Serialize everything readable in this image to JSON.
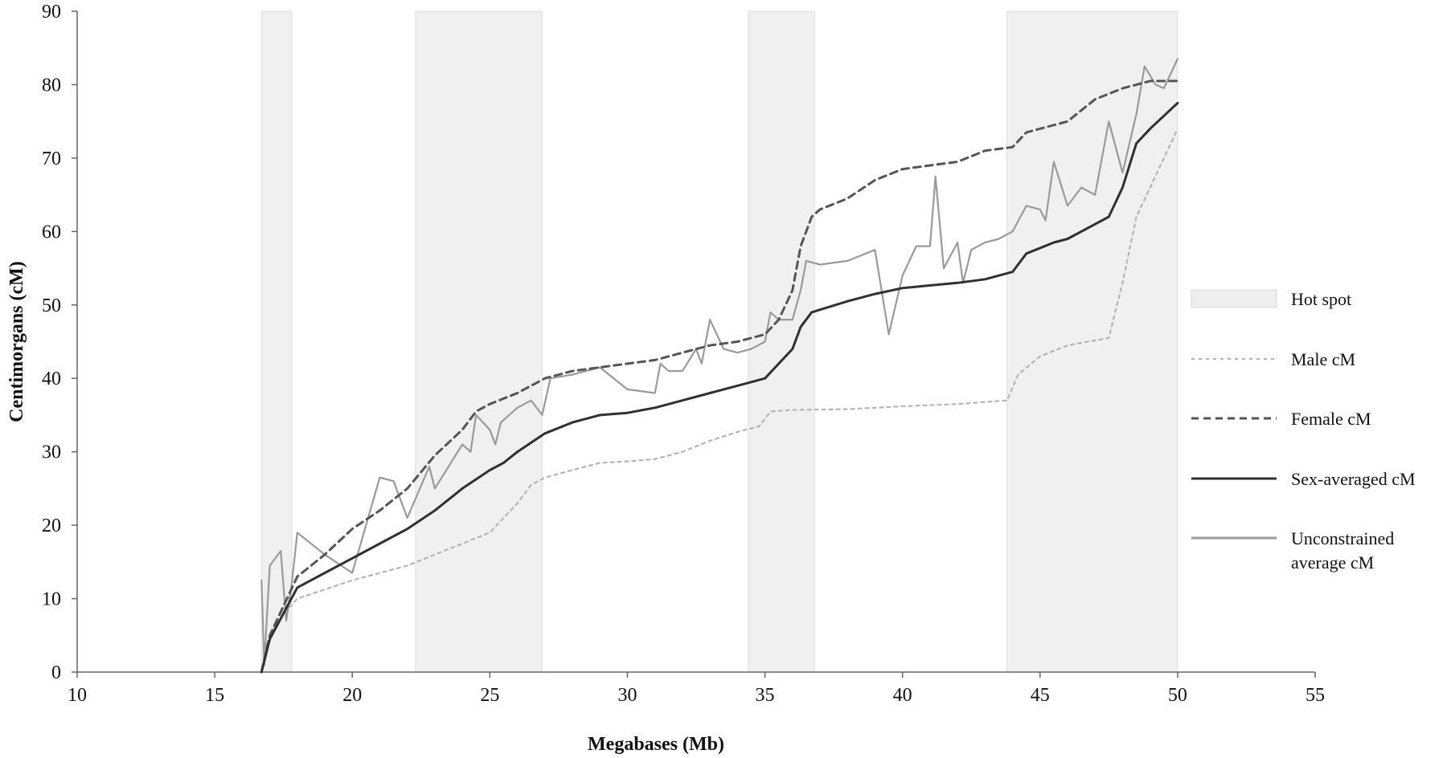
{
  "chart_data": {
    "type": "line",
    "title": "",
    "xlabel": "Megabases (Mb)",
    "ylabel": "Centimorgans (cM)",
    "xlim": [
      10,
      55
    ],
    "ylim": [
      0,
      90
    ],
    "x_ticks": [
      "10",
      "15",
      "20",
      "25",
      "30",
      "35",
      "40",
      "45",
      "50",
      "55"
    ],
    "y_ticks": [
      "0",
      "10",
      "20",
      "30",
      "40",
      "50",
      "60",
      "70",
      "80",
      "90"
    ],
    "grid": false,
    "legend_position": "right",
    "hot_spots": [
      [
        16.7,
        17.8
      ],
      [
        22.3,
        26.9
      ],
      [
        34.4,
        36.8
      ],
      [
        43.8,
        50.0
      ]
    ],
    "series": [
      {
        "name": "Male cM",
        "style": "dotted",
        "color": "#b4b4b4",
        "points": [
          [
            16.7,
            0
          ],
          [
            17.0,
            5
          ],
          [
            17.5,
            8
          ],
          [
            18.0,
            10
          ],
          [
            20.0,
            12.5
          ],
          [
            22.0,
            14.5
          ],
          [
            24.0,
            17.5
          ],
          [
            25.0,
            19
          ],
          [
            25.5,
            21
          ],
          [
            26.0,
            23
          ],
          [
            26.5,
            25.5
          ],
          [
            27.0,
            26.5
          ],
          [
            28.0,
            27.5
          ],
          [
            29.0,
            28.5
          ],
          [
            30.0,
            28.7
          ],
          [
            31.0,
            29
          ],
          [
            32.0,
            30
          ],
          [
            33.0,
            31.5
          ],
          [
            34.0,
            32.7
          ],
          [
            34.8,
            33.5
          ],
          [
            35.2,
            35.5
          ],
          [
            36.0,
            35.7
          ],
          [
            38.0,
            35.8
          ],
          [
            40.0,
            36.2
          ],
          [
            42.0,
            36.5
          ],
          [
            43.8,
            37
          ],
          [
            44.2,
            40.5
          ],
          [
            45.0,
            43
          ],
          [
            46.0,
            44.5
          ],
          [
            47.5,
            45.5
          ],
          [
            48.0,
            53
          ],
          [
            48.5,
            62
          ],
          [
            49.0,
            66
          ],
          [
            49.5,
            70
          ],
          [
            50.0,
            74
          ]
        ]
      },
      {
        "name": "Female cM",
        "style": "dashed",
        "color": "#555555",
        "points": [
          [
            16.7,
            0
          ],
          [
            17.0,
            5
          ],
          [
            17.5,
            9
          ],
          [
            18.0,
            13
          ],
          [
            19.0,
            16
          ],
          [
            20.0,
            19.5
          ],
          [
            21.0,
            22
          ],
          [
            22.0,
            25
          ],
          [
            23.0,
            29.5
          ],
          [
            24.0,
            33
          ],
          [
            24.5,
            35.5
          ],
          [
            25.0,
            36.5
          ],
          [
            26.0,
            38
          ],
          [
            27.0,
            40
          ],
          [
            28.0,
            41
          ],
          [
            29.0,
            41.5
          ],
          [
            30.0,
            42
          ],
          [
            31.0,
            42.5
          ],
          [
            32.0,
            43.5
          ],
          [
            33.0,
            44.5
          ],
          [
            34.0,
            45
          ],
          [
            35.0,
            46
          ],
          [
            35.5,
            48
          ],
          [
            36.0,
            52
          ],
          [
            36.3,
            58
          ],
          [
            36.7,
            62
          ],
          [
            37.0,
            63
          ],
          [
            38.0,
            64.5
          ],
          [
            39.0,
            67
          ],
          [
            40.0,
            68.5
          ],
          [
            41.0,
            69
          ],
          [
            42.0,
            69.5
          ],
          [
            43.0,
            71
          ],
          [
            44.0,
            71.5
          ],
          [
            44.5,
            73.5
          ],
          [
            46.0,
            75
          ],
          [
            47.0,
            78
          ],
          [
            48.0,
            79.5
          ],
          [
            49.0,
            80.5
          ],
          [
            50.0,
            80.5
          ]
        ]
      },
      {
        "name": "Sex-averaged cM",
        "style": "solid",
        "color": "#303030",
        "points": [
          [
            16.7,
            0
          ],
          [
            17.0,
            4.5
          ],
          [
            17.5,
            8
          ],
          [
            18.0,
            11.5
          ],
          [
            19.0,
            13.5
          ],
          [
            20.0,
            15.5
          ],
          [
            21.0,
            17.5
          ],
          [
            22.0,
            19.5
          ],
          [
            23.0,
            22
          ],
          [
            24.0,
            25
          ],
          [
            25.0,
            27.5
          ],
          [
            25.5,
            28.5
          ],
          [
            26.0,
            30
          ],
          [
            27.0,
            32.5
          ],
          [
            28.0,
            34
          ],
          [
            29.0,
            35
          ],
          [
            30.0,
            35.3
          ],
          [
            31.0,
            36
          ],
          [
            32.0,
            37
          ],
          [
            33.0,
            38
          ],
          [
            34.0,
            39
          ],
          [
            35.0,
            40
          ],
          [
            35.5,
            42
          ],
          [
            36.0,
            44
          ],
          [
            36.3,
            47
          ],
          [
            36.7,
            49
          ],
          [
            38.0,
            50.5
          ],
          [
            39.0,
            51.5
          ],
          [
            40.0,
            52.3
          ],
          [
            42.0,
            53
          ],
          [
            43.0,
            53.5
          ],
          [
            44.0,
            54.5
          ],
          [
            44.5,
            57
          ],
          [
            45.5,
            58.5
          ],
          [
            46.0,
            59
          ],
          [
            47.0,
            61
          ],
          [
            47.5,
            62
          ],
          [
            48.0,
            66
          ],
          [
            48.5,
            72
          ],
          [
            49.0,
            74
          ],
          [
            50.0,
            77.5
          ]
        ]
      },
      {
        "name": "Unconstrained average cM",
        "style": "solid",
        "color": "#9a9a9a",
        "points": [
          [
            16.7,
            12.5
          ],
          [
            16.8,
            1
          ],
          [
            17.0,
            14.5
          ],
          [
            17.4,
            16.5
          ],
          [
            17.6,
            7
          ],
          [
            17.8,
            12
          ],
          [
            18.0,
            19
          ],
          [
            19.0,
            16
          ],
          [
            20.0,
            13.5
          ],
          [
            21.0,
            26.5
          ],
          [
            21.5,
            26
          ],
          [
            22.0,
            21
          ],
          [
            22.8,
            28
          ],
          [
            23.0,
            25
          ],
          [
            23.5,
            28
          ],
          [
            24.0,
            31
          ],
          [
            24.3,
            30
          ],
          [
            24.5,
            35
          ],
          [
            25.0,
            33
          ],
          [
            25.2,
            31
          ],
          [
            25.4,
            34
          ],
          [
            26.0,
            36
          ],
          [
            26.5,
            37
          ],
          [
            26.9,
            35
          ],
          [
            27.2,
            40
          ],
          [
            28.0,
            40.5
          ],
          [
            29.0,
            41.5
          ],
          [
            30.0,
            38.5
          ],
          [
            31.0,
            38
          ],
          [
            31.2,
            42
          ],
          [
            31.5,
            41
          ],
          [
            32.0,
            41
          ],
          [
            32.5,
            44
          ],
          [
            32.7,
            42
          ],
          [
            33.0,
            48
          ],
          [
            33.5,
            44
          ],
          [
            34.0,
            43.5
          ],
          [
            34.5,
            44
          ],
          [
            35.0,
            45
          ],
          [
            35.2,
            49
          ],
          [
            35.5,
            48
          ],
          [
            36.0,
            48
          ],
          [
            36.3,
            52
          ],
          [
            36.5,
            56
          ],
          [
            37.0,
            55.5
          ],
          [
            38.0,
            56
          ],
          [
            39.0,
            57.5
          ],
          [
            39.5,
            46
          ],
          [
            40.0,
            54
          ],
          [
            40.5,
            58
          ],
          [
            41.0,
            58
          ],
          [
            41.2,
            67.5
          ],
          [
            41.5,
            55
          ],
          [
            42.0,
            58.5
          ],
          [
            42.2,
            53
          ],
          [
            42.5,
            57.5
          ],
          [
            43.0,
            58.5
          ],
          [
            43.5,
            59
          ],
          [
            44.0,
            60
          ],
          [
            44.5,
            63.5
          ],
          [
            45.0,
            63
          ],
          [
            45.2,
            61.5
          ],
          [
            45.5,
            69.5
          ],
          [
            46.0,
            63.5
          ],
          [
            46.5,
            66
          ],
          [
            47.0,
            65
          ],
          [
            47.5,
            75
          ],
          [
            48.0,
            68
          ],
          [
            48.5,
            76
          ],
          [
            48.8,
            82.5
          ],
          [
            49.2,
            80
          ],
          [
            49.5,
            79.5
          ],
          [
            50.0,
            83.5
          ]
        ]
      }
    ],
    "legend": [
      {
        "label": "Hot spot",
        "kind": "patch"
      },
      {
        "label": "Male cM",
        "kind": "line"
      },
      {
        "label": "Female cM",
        "kind": "line"
      },
      {
        "label": "Sex-averaged cM",
        "kind": "line"
      },
      {
        "label": "Unconstrained\naverage cM",
        "kind": "line"
      }
    ]
  }
}
